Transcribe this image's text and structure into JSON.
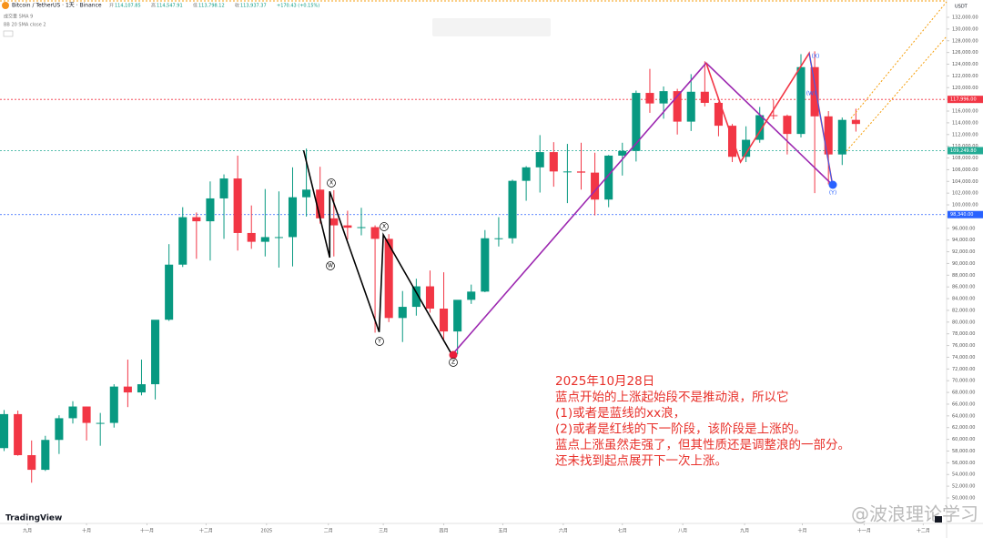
{
  "chart_data": {
    "type": "candlestick",
    "header": {
      "symbol": "Bitcoin / TetherUS · 1天 · Binance",
      "ohlc_labels": [
        "开",
        "高",
        "低",
        "收"
      ],
      "ohlc": [
        "114,107.85",
        "114,547.91",
        "113,798.12",
        "113,937.37"
      ],
      "change": "+170.43 (+0.15%)",
      "indicators": [
        "成交量 SMA 9",
        "BB 20 SMA close 2"
      ]
    },
    "currency": "USDT",
    "up_color": "#089981",
    "down_color": "#f23645",
    "open": [
      58500,
      64300,
      57300,
      54800,
      59900,
      63600,
      65600,
      62800,
      62800,
      69000,
      68000,
      69400,
      80400,
      89800,
      97900,
      97200,
      101100,
      104500,
      95200,
      93700,
      94500,
      94500,
      101300,
      102600,
      97700,
      96500,
      96100,
      96200,
      94200,
      80700,
      82600,
      86100,
      82300,
      78400,
      83800,
      85200,
      94300,
      94300,
      104100,
      106400,
      109000,
      105700,
      105700,
      105500,
      100900,
      108400,
      109200,
      119100,
      117300,
      119400,
      114200,
      119300,
      117400,
      113500,
      108200,
      111100,
      115300,
      115200,
      112100,
      123500,
      115100,
      108600,
      114500
    ],
    "high": [
      65000,
      64900,
      59800,
      60600,
      64100,
      66500,
      65600,
      64500,
      69400,
      73600,
      73600,
      80300,
      93300,
      99600,
      98700,
      104000,
      105200,
      108400,
      99900,
      102700,
      102300,
      106400,
      109600,
      106500,
      102500,
      99000,
      99500,
      96500,
      95000,
      85300,
      87400,
      88800,
      88500,
      83600,
      86400,
      95700,
      97900,
      104300,
      106600,
      111900,
      110700,
      110400,
      110600,
      108900,
      108500,
      110600,
      119500,
      123200,
      120200,
      119800,
      122300,
      124500,
      117600,
      113800,
      113400,
      116700,
      117900,
      115400,
      125700,
      126200,
      116000,
      114900,
      116400
    ],
    "low": [
      58000,
      57200,
      52600,
      54600,
      57500,
      62700,
      59800,
      58900,
      62000,
      65500,
      67500,
      66800,
      80200,
      89400,
      90800,
      90500,
      94200,
      92200,
      92500,
      91200,
      89300,
      89500,
      98000,
      96800,
      91200,
      94100,
      94800,
      78200,
      80000,
      76600,
      81100,
      81600,
      77100,
      74500,
      83100,
      85100,
      92900,
      93400,
      100700,
      102100,
      103100,
      100300,
      102600,
      98200,
      99600,
      105000,
      107400,
      115700,
      114700,
      112000,
      112600,
      116800,
      111700,
      107300,
      107300,
      110600,
      114600,
      108600,
      111500,
      102000,
      103500,
      106800,
      112500
    ],
    "close": [
      64300,
      57300,
      54800,
      59900,
      63600,
      65600,
      62800,
      62800,
      69000,
      68000,
      69400,
      80400,
      89800,
      97900,
      97200,
      101100,
      104500,
      95200,
      93700,
      94500,
      94500,
      101300,
      102600,
      97700,
      96500,
      96100,
      96200,
      94200,
      80700,
      82600,
      86100,
      82300,
      78400,
      83800,
      85200,
      94300,
      94300,
      104100,
      106400,
      109000,
      105700,
      105700,
      105500,
      100900,
      108400,
      109200,
      119100,
      117300,
      119400,
      114200,
      119300,
      117400,
      113500,
      108200,
      111100,
      115300,
      115200,
      112100,
      123500,
      115100,
      108600,
      114500,
      113800
    ],
    "xlim": [
      -0.3,
      68.6
    ],
    "xticks": [
      {
        "value": 1.7,
        "label": "九月"
      },
      {
        "value": 6.0,
        "label": "十月"
      },
      {
        "value": 10.4,
        "label": "十一月"
      },
      {
        "value": 14.7,
        "label": "十二月"
      },
      {
        "value": 19.1,
        "label": "2025"
      },
      {
        "value": 23.6,
        "label": "二月"
      },
      {
        "value": 27.6,
        "label": "三月"
      },
      {
        "value": 32.0,
        "label": "四月"
      },
      {
        "value": 36.3,
        "label": "五月"
      },
      {
        "value": 40.7,
        "label": "六月"
      },
      {
        "value": 45.0,
        "label": "七月"
      },
      {
        "value": 49.4,
        "label": "八月"
      },
      {
        "value": 53.9,
        "label": "九月"
      },
      {
        "value": 58.1,
        "label": "十月"
      },
      {
        "value": 62.6,
        "label": "十一月"
      },
      {
        "value": 66.9,
        "label": "十二月"
      }
    ],
    "ylim": [
      45650,
      134950
    ],
    "yticks": [
      {
        "value": 50000,
        "label": "50,000.00"
      },
      {
        "value": 52000,
        "label": "52,000.00"
      },
      {
        "value": 54000,
        "label": "54,000.00"
      },
      {
        "value": 56000,
        "label": "56,000.00"
      },
      {
        "value": 58000,
        "label": "58,000.00"
      },
      {
        "value": 60000,
        "label": "60,000.00"
      },
      {
        "value": 62000,
        "label": "62,000.00"
      },
      {
        "value": 64000,
        "label": "64,000.00"
      },
      {
        "value": 66000,
        "label": "66,000.00"
      },
      {
        "value": 68000,
        "label": "68,000.00"
      },
      {
        "value": 70000,
        "label": "70,000.00"
      },
      {
        "value": 72000,
        "label": "72,000.00"
      },
      {
        "value": 74000,
        "label": "74,000.00"
      },
      {
        "value": 76000,
        "label": "76,000.00"
      },
      {
        "value": 78000,
        "label": "78,000.00"
      },
      {
        "value": 80000,
        "label": "80,000.00"
      },
      {
        "value": 82000,
        "label": "82,000.00"
      },
      {
        "value": 84000,
        "label": "84,000.00"
      },
      {
        "value": 86000,
        "label": "86,000.00"
      },
      {
        "value": 88000,
        "label": "88,000.00"
      },
      {
        "value": 90000,
        "label": "90,000.00"
      },
      {
        "value": 92000,
        "label": "92,000.00"
      },
      {
        "value": 94000,
        "label": "94,000.00"
      },
      {
        "value": 96000,
        "label": "96,000.00"
      },
      {
        "value": 98000,
        "label": "98,000.00"
      },
      {
        "value": 100000,
        "label": "100,000.00"
      },
      {
        "value": 102000,
        "label": "102,000.00"
      },
      {
        "value": 104000,
        "label": "104,000.00"
      },
      {
        "value": 106000,
        "label": "106,000.00"
      },
      {
        "value": 108000,
        "label": "108,000.00"
      },
      {
        "value": 110000,
        "label": "110,000.00"
      },
      {
        "value": 112000,
        "label": "112,000.00"
      },
      {
        "value": 114000,
        "label": "114,000.00"
      },
      {
        "value": 116000,
        "label": "116,000.00"
      },
      {
        "value": 118000,
        "label": "118,000.00"
      },
      {
        "value": 120000,
        "label": "120,000.00"
      },
      {
        "value": 122000,
        "label": "122,000.00"
      },
      {
        "value": 124000,
        "label": "124,000.00"
      },
      {
        "value": 126000,
        "label": "126,000.00"
      },
      {
        "value": 128000,
        "label": "128,000.00"
      },
      {
        "value": 130000,
        "label": "130,000.00"
      },
      {
        "value": 132000,
        "label": "132,000.00"
      }
    ],
    "levels": [
      {
        "value": 117996,
        "label": "117,996.00",
        "color": "#f23645"
      },
      {
        "value": 109249.8,
        "label": "109,249.80",
        "color": "#22ab94"
      },
      {
        "value": 98340,
        "label": "98,340.00",
        "color": "#2962ff"
      }
    ],
    "drawings": [
      {
        "color": "#000000",
        "x": [
          21.8,
          23.7,
          23.7,
          27.3,
          27.6,
          32.6
        ],
        "y": [
          109300,
          91000,
          102300,
          78300,
          94900,
          74400
        ]
      },
      {
        "color": "#9c27b0",
        "x": [
          32.6,
          51.1,
          60.3
        ],
        "y": [
          74400,
          124200,
          103400
        ]
      },
      {
        "color": "#f23645",
        "x": [
          51.1,
          53.6,
          58.6,
          60.3
        ],
        "y": [
          124200,
          107300,
          125900,
          103400
        ]
      },
      {
        "color": "#2962ff",
        "x": [
          58.6,
          60.3
        ],
        "y": [
          125900,
          103400
        ]
      }
    ],
    "wave_labels": [
      "X",
      "W",
      "X",
      "Y",
      "Z",
      "(X)",
      "(W)",
      "(Y)"
    ],
    "note": [
      "2025年10月28日",
      "蓝点开始的上涨起始段不是推动浪，所以它",
      "(1)或者是蓝线的xx浪，",
      "(2)或者是红线的下一阶段，该阶段是上涨的。",
      "蓝点上涨虽然走强了，但其性质还是调整浪的一部分。",
      "还未找到起点展开下一次上涨。"
    ],
    "brand": "TradingView",
    "watermark": "@波浪理论学习"
  }
}
